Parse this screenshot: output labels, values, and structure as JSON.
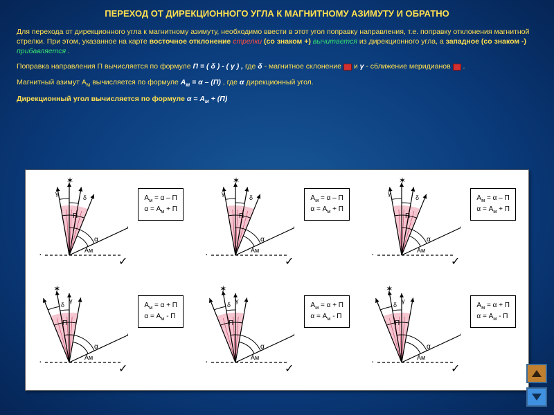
{
  "title": "ПЕРЕХОД ОТ ДИРЕКЦИОННОГО УГЛА К МАГНИТНОМУ АЗИМУТУ И ОБРАТНО",
  "p1_a": "Для перехода от дирекционного угла к магнитному азимуту, необходимо ввести в этот угол поправку направления, т.е. поправку отклонения магнитной стрелки. При этом, указанное на карте ",
  "p1_east": "восточное отклонение ",
  "p1_arrow": "стрелки ",
  "p1_plus": "(со знаком +) ",
  "p1_minus_verb": "вычитается",
  "p1_mid": " из дирекционного угла, а ",
  "p1_west": "западное ",
  "p1_minus": "(со знаком -) ",
  "p1_add": "прибавляется",
  "p1_dot": ".",
  "p2_a": "Поправка направления П вычисляется по формуле ",
  "p2_f": "П = ( δ )  -  (  γ ) ,",
  "p2_b": "  где ",
  "p2_delta": "δ ",
  "p2_c": "- магнитное склонение ",
  "p2_d": "  и  ",
  "p2_gamma": "γ ",
  "p2_e": "- сближение меридианов ",
  "p2_dot": "  .",
  "p3_a": "Магнитный азимут А",
  "p3_sub": "м",
  "p3_b": " вычисляется по формуле ",
  "p3_f": "А",
  "p3_fsub": "м",
  "p3_f2": " = α – (П)",
  "p3_c": ", где ",
  "p3_alpha": "α ",
  "p3_d": "дирекционный угол.",
  "p4_a": "Дирекционный угол вычисляется по формуле ",
  "p4_f": "α = А",
  "p4_sub": "м",
  "p4_f2": " + (П)",
  "diagrams": {
    "colors": {
      "line": "#000000",
      "dash": "#000000",
      "hatch_fill": "#f5c5d0",
      "hatch_stroke": "#c04060",
      "text": "#000000"
    },
    "labels": {
      "gamma": "γ",
      "delta": "δ",
      "pi": "П",
      "alpha": "α",
      "am": "Aм",
      "check": "✓",
      "dot": "·"
    },
    "cells": [
      {
        "row": 0,
        "col": 0,
        "type": "east",
        "formula": "Aм = α – П\nα = Aм + П",
        "box_right": true
      },
      {
        "row": 0,
        "col": 1,
        "type": "east",
        "formula": "Aм = α – П\nα = Aм + П",
        "box_right": true
      },
      {
        "row": 0,
        "col": 2,
        "type": "east",
        "formula": "Aм = α – П\nα = Aм + П",
        "box_right": true
      },
      {
        "row": 1,
        "col": 0,
        "type": "west",
        "formula": "Aм = α + П\nα = Aм - П",
        "box_right": true
      },
      {
        "row": 1,
        "col": 1,
        "type": "west",
        "formula": "Aм = α + П\nα = Aм - П",
        "box_right": true
      },
      {
        "row": 1,
        "col": 2,
        "type": "west",
        "formula": "Aм = α + П\nα = Aм - П",
        "box_right": true
      }
    ]
  }
}
